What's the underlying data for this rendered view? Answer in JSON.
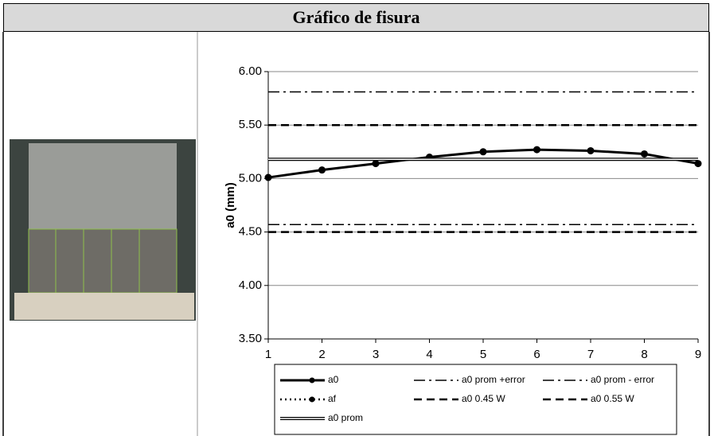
{
  "header": {
    "title": "Gráfico de fisura"
  },
  "chart_data": {
    "type": "line",
    "y_label": "a0 (mm)",
    "x": [
      1,
      2,
      3,
      4,
      5,
      6,
      7,
      8,
      9
    ],
    "xlim": [
      1,
      9
    ],
    "xticks": [
      1,
      2,
      3,
      4,
      5,
      6,
      7,
      8,
      9
    ],
    "ylim": [
      3.5,
      6
    ],
    "yticks": [
      {
        "value": 3.5,
        "label": "3.50"
      },
      {
        "value": 4,
        "label": "4.00"
      },
      {
        "value": 4.5,
        "label": "4.50"
      },
      {
        "value": 5,
        "label": "5.00"
      },
      {
        "value": 5.5,
        "label": "5.50"
      },
      {
        "value": 6,
        "label": "6.00"
      }
    ],
    "grid": true,
    "series": [
      {
        "name": "a0",
        "color": "#000000",
        "line_style": "solid",
        "marker": true,
        "values": [
          5.01,
          5.08,
          5.14,
          5.2,
          5.25,
          5.27,
          5.26,
          5.23,
          5.14
        ]
      },
      {
        "name": "a0 prom +error",
        "color": "#000000",
        "line_style": "dashdot",
        "marker": false,
        "values": [
          5.81,
          5.81,
          5.81,
          5.81,
          5.81,
          5.81,
          5.81,
          5.81,
          5.81
        ]
      },
      {
        "name": "a0 prom - error",
        "color": "#000000",
        "line_style": "dashdot",
        "marker": false,
        "values": [
          4.57,
          4.57,
          4.57,
          4.57,
          4.57,
          4.57,
          4.57,
          4.57,
          4.57
        ]
      },
      {
        "name": "af",
        "color": "#000000",
        "line_style": "dotted",
        "marker": true,
        "values": [
          null,
          null,
          null,
          null,
          null,
          null,
          null,
          null,
          null
        ]
      },
      {
        "name": "a0 0.45 W",
        "color": "#000000",
        "line_style": "dashed",
        "marker": false,
        "values": [
          4.5,
          4.5,
          4.5,
          4.5,
          4.5,
          4.5,
          4.5,
          4.5,
          4.5
        ]
      },
      {
        "name": "a0 0.55 W",
        "color": "#000000",
        "line_style": "dashed",
        "marker": false,
        "values": [
          5.5,
          5.5,
          5.5,
          5.5,
          5.5,
          5.5,
          5.5,
          5.5,
          5.5
        ]
      },
      {
        "name": "a0 prom",
        "color": "#000000",
        "line_style": "double",
        "marker": false,
        "values": [
          5.18,
          5.18,
          5.18,
          5.18,
          5.18,
          5.18,
          5.18,
          5.18,
          5.18
        ]
      }
    ]
  }
}
